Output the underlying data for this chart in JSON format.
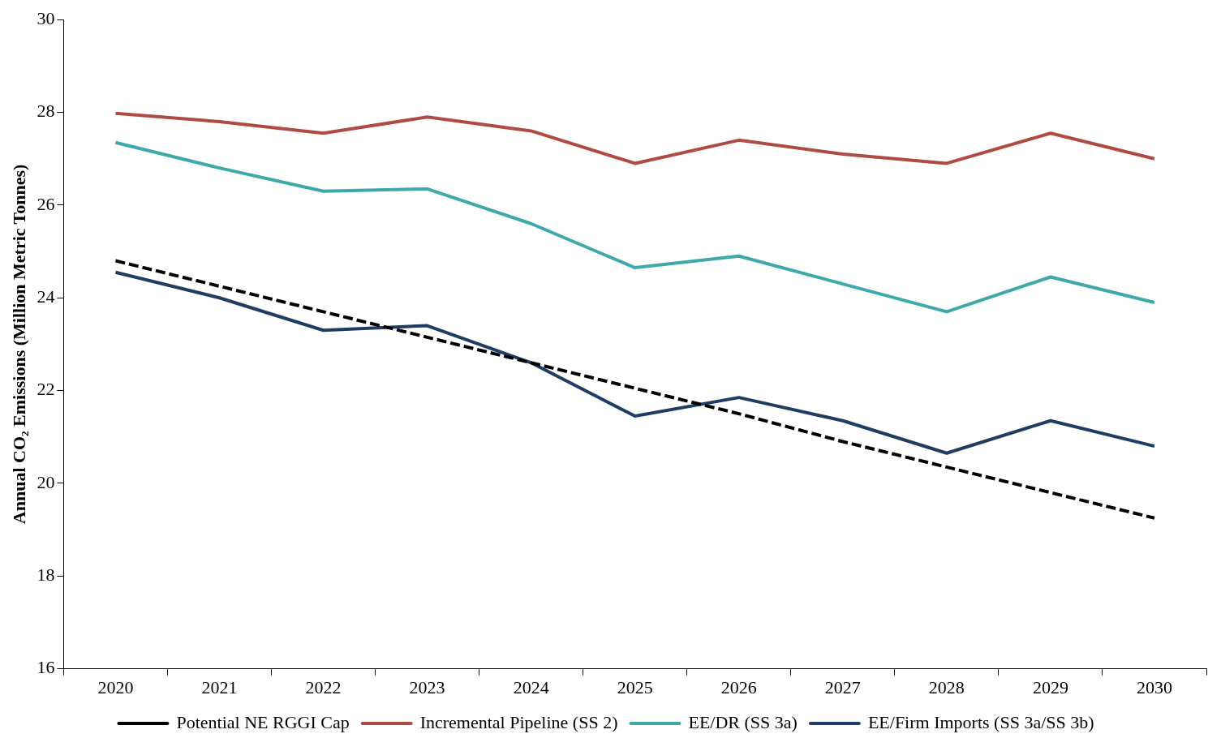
{
  "chart_data": {
    "type": "line",
    "ylabel": "Annual CO₂ Emissions (Million Metric Tonnes)",
    "categories": [
      "2020",
      "2021",
      "2022",
      "2023",
      "2024",
      "2025",
      "2026",
      "2027",
      "2028",
      "2029",
      "2030"
    ],
    "ylim": [
      16,
      30
    ],
    "yticks": [
      16,
      18,
      20,
      22,
      24,
      26,
      28,
      30
    ],
    "grid": false,
    "legend": "bottom",
    "marker": "none",
    "series": [
      {
        "name": "Potential NE RGGI Cap",
        "color": "#000000",
        "line_style": "dashed",
        "values": [
          24.8,
          24.25,
          23.7,
          23.15,
          22.6,
          22.05,
          21.5,
          20.9,
          20.35,
          19.8,
          19.25
        ]
      },
      {
        "name": "Incremental Pipeline (SS 2)",
        "color": "#b04a45",
        "line_style": "solid",
        "values": [
          27.98,
          27.8,
          27.55,
          27.9,
          27.6,
          26.9,
          27.4,
          27.1,
          26.9,
          27.55,
          27.0
        ]
      },
      {
        "name": "EE/DR (SS 3a)",
        "color": "#3ea8ab",
        "line_style": "solid",
        "values": [
          27.35,
          26.8,
          26.3,
          26.35,
          25.6,
          24.65,
          24.9,
          24.3,
          23.7,
          24.45,
          23.9
        ]
      },
      {
        "name": "EE/Firm Imports (SS 3a/SS 3b)",
        "color": "#1f3d63",
        "line_style": "solid",
        "values": [
          24.55,
          24.0,
          23.3,
          23.4,
          22.6,
          21.45,
          21.85,
          21.35,
          20.65,
          21.35,
          20.8
        ]
      }
    ]
  }
}
